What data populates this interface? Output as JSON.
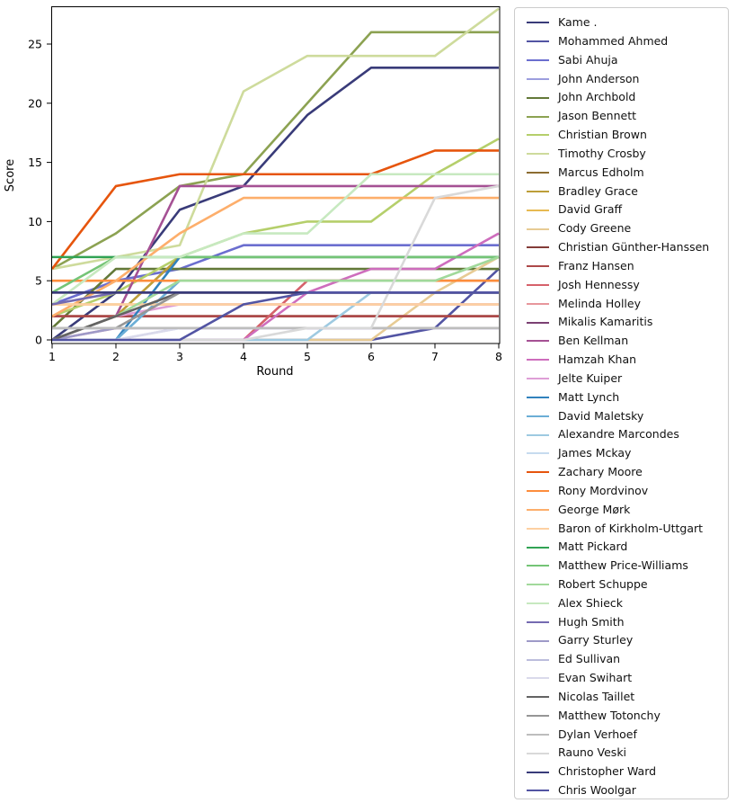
{
  "chart_data": {
    "type": "line",
    "title": "",
    "xlabel": "Round",
    "ylabel": "Score",
    "x": [
      1,
      2,
      3,
      4,
      5,
      6,
      7,
      8
    ],
    "xticks": [
      "1",
      "2",
      "3",
      "4",
      "5",
      "6",
      "7",
      "8"
    ],
    "yticks": [
      "0",
      "5",
      "10",
      "15",
      "20",
      "25"
    ],
    "ytick_values": [
      0,
      5,
      10,
      15,
      20,
      25
    ],
    "xlim": [
      1,
      8
    ],
    "ylim": [
      -0.3,
      28.2
    ],
    "grid": false,
    "legend_position": "outside-right",
    "line_width": 2.6,
    "series": [
      {
        "name": "Kame .",
        "color": "#393b79",
        "values": [
          0,
          4,
          11,
          13,
          19,
          23,
          23,
          23
        ]
      },
      {
        "name": "Mohammed Ahmed",
        "color": "#5254a3",
        "values": [
          0,
          0,
          0,
          0,
          0,
          0,
          1,
          6
        ]
      },
      {
        "name": "Sabi Ahuja",
        "color": "#6b6ecf",
        "values": [
          3,
          5,
          6,
          8,
          8,
          8,
          8,
          8
        ]
      },
      {
        "name": "John Anderson",
        "color": "#9c9ede",
        "values": [
          1,
          1,
          1,
          1,
          1,
          1,
          1,
          1
        ]
      },
      {
        "name": "John Archbold",
        "color": "#637939",
        "values": [
          1,
          6,
          6,
          6,
          6,
          6,
          6,
          6
        ]
      },
      {
        "name": "Jason Bennett",
        "color": "#8ca252",
        "values": [
          6,
          9,
          13,
          14,
          20,
          26,
          26,
          26
        ]
      },
      {
        "name": "Christian Brown",
        "color": "#b5cf6b",
        "values": [
          2,
          4,
          7,
          9,
          10,
          10,
          14,
          17
        ]
      },
      {
        "name": "Timothy Crosby",
        "color": "#cedb9c",
        "values": [
          6,
          7,
          8,
          21,
          24,
          24,
          24,
          28
        ]
      },
      {
        "name": "Marcus Edholm",
        "color": "#8c6d31",
        "values": [
          2,
          2,
          2,
          2,
          2,
          2,
          2,
          2
        ]
      },
      {
        "name": "Bradley Grace",
        "color": "#bd9e39",
        "values": [
          0,
          2,
          7,
          7,
          7,
          7,
          7,
          7
        ]
      },
      {
        "name": "David Graff",
        "color": "#e7ba52",
        "values": [
          3,
          3,
          3,
          3,
          3,
          3,
          3,
          3
        ]
      },
      {
        "name": "Cody Greene",
        "color": "#e7cb94",
        "values": [
          0,
          0,
          0,
          0,
          0,
          0,
          4,
          7
        ]
      },
      {
        "name": "Christian Günther-Hanssen",
        "color": "#843c39",
        "values": [
          2,
          2,
          2,
          2,
          2,
          2,
          2,
          2
        ]
      },
      {
        "name": "Franz Hansen",
        "color": "#ad494a",
        "values": [
          2,
          2,
          2,
          2,
          2,
          2,
          2,
          2
        ]
      },
      {
        "name": "Josh Hennessy",
        "color": "#d6616b",
        "values": [
          0,
          0,
          0,
          0,
          5,
          5,
          5,
          5
        ]
      },
      {
        "name": "Melinda Holley",
        "color": "#e7969c",
        "values": [
          0,
          1,
          1,
          1,
          1,
          1,
          1,
          1
        ]
      },
      {
        "name": "Mikalis Kamaritis",
        "color": "#7b4173",
        "values": [
          4,
          4,
          4,
          4,
          4,
          4,
          4,
          4
        ]
      },
      {
        "name": "Ben Kellman",
        "color": "#a55194",
        "values": [
          0,
          2,
          13,
          13,
          13,
          13,
          13,
          13
        ]
      },
      {
        "name": "Hamzah Khan",
        "color": "#ce6dbd",
        "values": [
          0,
          0,
          0,
          0,
          4,
          6,
          6,
          9
        ]
      },
      {
        "name": "Jelte Kuiper",
        "color": "#de9ed6",
        "values": [
          0,
          2,
          3,
          3,
          3,
          3,
          3,
          3
        ]
      },
      {
        "name": "Matt Lynch",
        "color": "#3182bd",
        "values": [
          0,
          0,
          7,
          7,
          7,
          7,
          7,
          7
        ]
      },
      {
        "name": "David Maletsky",
        "color": "#6baed6",
        "values": [
          0,
          0,
          5,
          5,
          5,
          5,
          5,
          5
        ]
      },
      {
        "name": "Alexandre Marcondes",
        "color": "#9ecae1",
        "values": [
          0,
          0,
          0,
          0,
          0,
          4,
          4,
          4
        ]
      },
      {
        "name": "James Mckay",
        "color": "#c6dbef",
        "values": [
          0,
          0,
          1,
          1,
          1,
          1,
          1,
          1
        ]
      },
      {
        "name": "Zachary Moore",
        "color": "#e6550d",
        "values": [
          6,
          13,
          14,
          14,
          14,
          14,
          16,
          16
        ]
      },
      {
        "name": "Rony Mordvinov",
        "color": "#fd8d3c",
        "values": [
          5,
          5,
          5,
          5,
          5,
          5,
          5,
          5
        ]
      },
      {
        "name": "George Mørk",
        "color": "#fdae6b",
        "values": [
          2,
          5,
          9,
          12,
          12,
          12,
          12,
          12
        ]
      },
      {
        "name": "Baron of Kirkholm-Uttgart",
        "color": "#fdd0a2",
        "values": [
          3,
          3,
          3,
          3,
          3,
          3,
          3,
          3
        ]
      },
      {
        "name": "Matt Pickard",
        "color": "#31a354",
        "values": [
          7,
          7,
          7,
          7,
          7,
          7,
          7,
          7
        ]
      },
      {
        "name": "Matthew Price-Williams",
        "color": "#74c476",
        "values": [
          4,
          7,
          7,
          7,
          7,
          7,
          7,
          7
        ]
      },
      {
        "name": "Robert Schuppe",
        "color": "#a1d99b",
        "values": [
          0,
          2,
          5,
          5,
          5,
          5,
          5,
          7
        ]
      },
      {
        "name": "Alex Shieck",
        "color": "#c7e9c0",
        "values": [
          3,
          7,
          7,
          9,
          9,
          14,
          14,
          14
        ]
      },
      {
        "name": "Hugh Smith",
        "color": "#756bb1",
        "values": [
          3,
          4,
          4,
          4,
          4,
          4,
          4,
          4
        ]
      },
      {
        "name": "Garry Sturley",
        "color": "#9e9ac8",
        "values": [
          0,
          1,
          1,
          1,
          1,
          1,
          1,
          1
        ]
      },
      {
        "name": "Ed Sullivan",
        "color": "#bcbddc",
        "values": [
          1,
          1,
          1,
          1,
          1,
          1,
          1,
          1
        ]
      },
      {
        "name": "Evan Swihart",
        "color": "#dadaeb",
        "values": [
          0,
          0,
          1,
          1,
          1,
          1,
          1,
          1
        ]
      },
      {
        "name": "Nicolas Taillet",
        "color": "#636363",
        "values": [
          0,
          2,
          4,
          4,
          4,
          4,
          4,
          4
        ]
      },
      {
        "name": "Matthew Totonchy",
        "color": "#969696",
        "values": [
          1,
          1,
          4,
          4,
          4,
          4,
          4,
          4
        ]
      },
      {
        "name": "Dylan Verhoef",
        "color": "#bdbdbd",
        "values": [
          1,
          1,
          1,
          1,
          1,
          1,
          1,
          1
        ]
      },
      {
        "name": "Rauno Veski",
        "color": "#d9d9d9",
        "values": [
          0,
          0,
          0,
          0,
          1,
          1,
          12,
          13
        ]
      },
      {
        "name": "Christopher Ward",
        "color": "#393b79",
        "values": [
          4,
          4,
          4,
          4,
          4,
          4,
          4,
          4
        ]
      },
      {
        "name": "Chris Woolgar",
        "color": "#5254a3",
        "values": [
          0,
          0,
          0,
          3,
          4,
          4,
          4,
          4
        ]
      }
    ]
  }
}
